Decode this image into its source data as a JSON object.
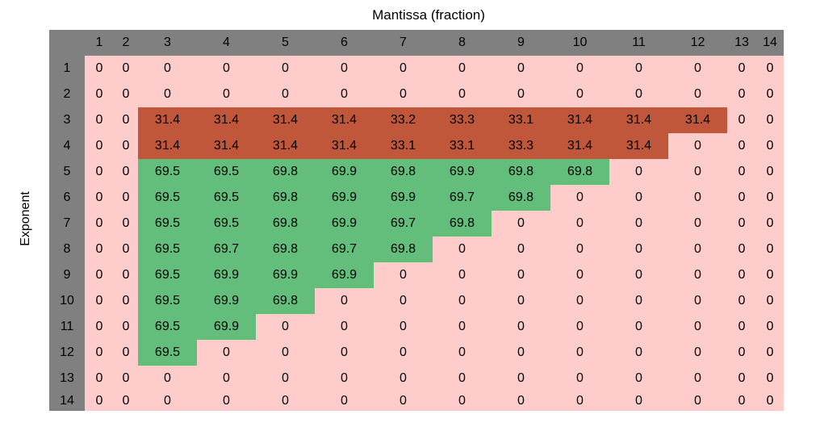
{
  "chart_data": {
    "type": "table",
    "title": "Mantissa (fraction)",
    "xlabel": "Mantissa (fraction)",
    "ylabel": "Exponent",
    "columns": [
      1,
      2,
      3,
      4,
      5,
      6,
      7,
      8,
      9,
      10,
      11,
      12,
      13,
      14
    ],
    "rows": [
      1,
      2,
      3,
      4,
      5,
      6,
      7,
      8,
      9,
      10,
      11,
      12,
      13,
      14
    ],
    "values": [
      [
        "0",
        "0",
        "0",
        "0",
        "0",
        "0",
        "0",
        "0",
        "0",
        "0",
        "0",
        "0",
        "0",
        "0"
      ],
      [
        "0",
        "0",
        "0",
        "0",
        "0",
        "0",
        "0",
        "0",
        "0",
        "0",
        "0",
        "0",
        "0",
        "0"
      ],
      [
        "0",
        "0",
        "31.4",
        "31.4",
        "31.4",
        "31.4",
        "33.2",
        "33.3",
        "33.1",
        "31.4",
        "31.4",
        "31.4",
        "0",
        "0"
      ],
      [
        "0",
        "0",
        "31.4",
        "31.4",
        "31.4",
        "31.4",
        "33.1",
        "33.1",
        "33.3",
        "31.4",
        "31.4",
        "0",
        "0",
        "0"
      ],
      [
        "0",
        "0",
        "69.5",
        "69.5",
        "69.8",
        "69.9",
        "69.8",
        "69.9",
        "69.8",
        "69.8",
        "0",
        "0",
        "0",
        "0"
      ],
      [
        "0",
        "0",
        "69.5",
        "69.5",
        "69.8",
        "69.9",
        "69.9",
        "69.7",
        "69.8",
        "0",
        "0",
        "0",
        "0",
        "0"
      ],
      [
        "0",
        "0",
        "69.5",
        "69.5",
        "69.8",
        "69.9",
        "69.7",
        "69.8",
        "0",
        "0",
        "0",
        "0",
        "0",
        "0"
      ],
      [
        "0",
        "0",
        "69.5",
        "69.7",
        "69.8",
        "69.7",
        "69.8",
        "0",
        "0",
        "0",
        "0",
        "0",
        "0",
        "0"
      ],
      [
        "0",
        "0",
        "69.5",
        "69.9",
        "69.9",
        "69.9",
        "0",
        "0",
        "0",
        "0",
        "0",
        "0",
        "0",
        "0"
      ],
      [
        "0",
        "0",
        "69.5",
        "69.9",
        "69.8",
        "0",
        "0",
        "0",
        "0",
        "0",
        "0",
        "0",
        "0",
        "0"
      ],
      [
        "0",
        "0",
        "69.5",
        "69.9",
        "0",
        "0",
        "0",
        "0",
        "0",
        "0",
        "0",
        "0",
        "0",
        "0"
      ],
      [
        "0",
        "0",
        "69.5",
        "0",
        "0",
        "0",
        "0",
        "0",
        "0",
        "0",
        "0",
        "0",
        "0",
        "0"
      ],
      [
        "0",
        "0",
        "0",
        "0",
        "0",
        "0",
        "0",
        "0",
        "0",
        "0",
        "0",
        "0",
        "0",
        "0"
      ],
      [
        "0",
        "0",
        "0",
        "0",
        "0",
        "0",
        "0",
        "0",
        "0",
        "0",
        "0",
        "0",
        "0",
        "0"
      ]
    ],
    "colors": {
      "zero": "#ffcccc",
      "mid": "#c0573a",
      "high": "#63be7b",
      "header": "#808080"
    }
  }
}
